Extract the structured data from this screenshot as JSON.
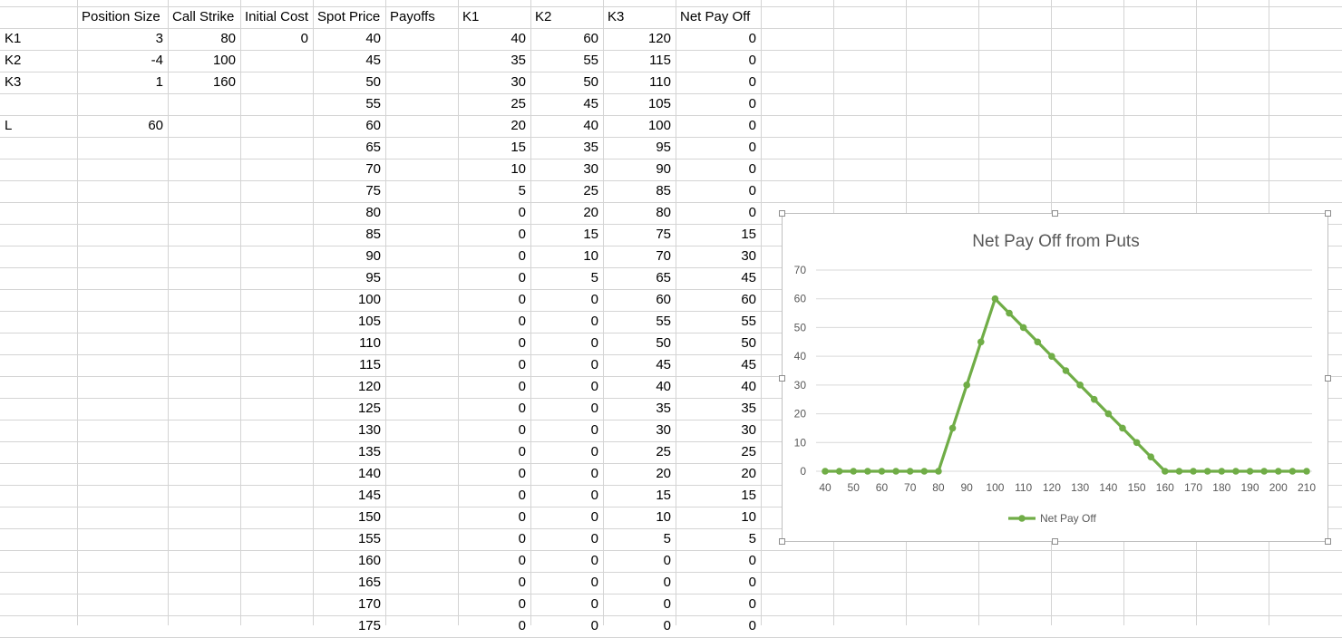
{
  "sheet": {
    "headers": [
      "",
      "Position Size",
      "Call Strike",
      "Initial Cost",
      "Spot Price",
      "Payoffs",
      "K1",
      "K2",
      "K3",
      "Net Pay Off"
    ],
    "params": [
      {
        "label": "K1",
        "size": "3",
        "strike": "80",
        "cost": "0"
      },
      {
        "label": "K2",
        "size": "-4",
        "strike": "100",
        "cost": ""
      },
      {
        "label": "K3",
        "size": "1",
        "strike": "160",
        "cost": ""
      },
      {
        "label": "",
        "size": "",
        "strike": "",
        "cost": ""
      },
      {
        "label": "L",
        "size": "60",
        "strike": "",
        "cost": ""
      }
    ],
    "rows": [
      [
        "40",
        "40",
        "60",
        "120",
        "0"
      ],
      [
        "45",
        "35",
        "55",
        "115",
        "0"
      ],
      [
        "50",
        "30",
        "50",
        "110",
        "0"
      ],
      [
        "55",
        "25",
        "45",
        "105",
        "0"
      ],
      [
        "60",
        "20",
        "40",
        "100",
        "0"
      ],
      [
        "65",
        "15",
        "35",
        "95",
        "0"
      ],
      [
        "70",
        "10",
        "30",
        "90",
        "0"
      ],
      [
        "75",
        "5",
        "25",
        "85",
        "0"
      ],
      [
        "80",
        "0",
        "20",
        "80",
        "0"
      ],
      [
        "85",
        "0",
        "15",
        "75",
        "15"
      ],
      [
        "90",
        "0",
        "10",
        "70",
        "30"
      ],
      [
        "95",
        "0",
        "5",
        "65",
        "45"
      ],
      [
        "100",
        "0",
        "0",
        "60",
        "60"
      ],
      [
        "105",
        "0",
        "0",
        "55",
        "55"
      ],
      [
        "110",
        "0",
        "0",
        "50",
        "50"
      ],
      [
        "115",
        "0",
        "0",
        "45",
        "45"
      ],
      [
        "120",
        "0",
        "0",
        "40",
        "40"
      ],
      [
        "125",
        "0",
        "0",
        "35",
        "35"
      ],
      [
        "130",
        "0",
        "0",
        "30",
        "30"
      ],
      [
        "135",
        "0",
        "0",
        "25",
        "25"
      ],
      [
        "140",
        "0",
        "0",
        "20",
        "20"
      ],
      [
        "145",
        "0",
        "0",
        "15",
        "15"
      ],
      [
        "150",
        "0",
        "0",
        "10",
        "10"
      ],
      [
        "155",
        "0",
        "0",
        "5",
        "5"
      ],
      [
        "160",
        "0",
        "0",
        "0",
        "0"
      ],
      [
        "165",
        "0",
        "0",
        "0",
        "0"
      ],
      [
        "170",
        "0",
        "0",
        "0",
        "0"
      ],
      [
        "175",
        "0",
        "0",
        "0",
        "0"
      ]
    ]
  },
  "chart_data": {
    "type": "line",
    "title": "Net Pay Off from Puts",
    "xlabel": "",
    "ylabel": "",
    "x": [
      40,
      45,
      50,
      55,
      60,
      65,
      70,
      75,
      80,
      85,
      90,
      95,
      100,
      105,
      110,
      115,
      120,
      125,
      130,
      135,
      140,
      145,
      150,
      155,
      160,
      165,
      170,
      175,
      180,
      185,
      190,
      195,
      200,
      205,
      210
    ],
    "x_tick_labels": [
      "40",
      "50",
      "60",
      "70",
      "80",
      "90",
      "100",
      "110",
      "120",
      "130",
      "140",
      "150",
      "160",
      "170",
      "180",
      "190",
      "200",
      "210"
    ],
    "y_tick_labels": [
      "0",
      "10",
      "20",
      "30",
      "40",
      "50",
      "60",
      "70"
    ],
    "ylim": [
      0,
      70
    ],
    "grid": true,
    "legend_position": "bottom",
    "series": [
      {
        "name": "Net Pay Off",
        "color": "#70ad47",
        "values": [
          0,
          0,
          0,
          0,
          0,
          0,
          0,
          0,
          0,
          15,
          30,
          45,
          60,
          55,
          50,
          45,
          40,
          35,
          30,
          25,
          20,
          15,
          10,
          5,
          0,
          0,
          0,
          0,
          0,
          0,
          0,
          0,
          0,
          0,
          0
        ]
      }
    ]
  }
}
